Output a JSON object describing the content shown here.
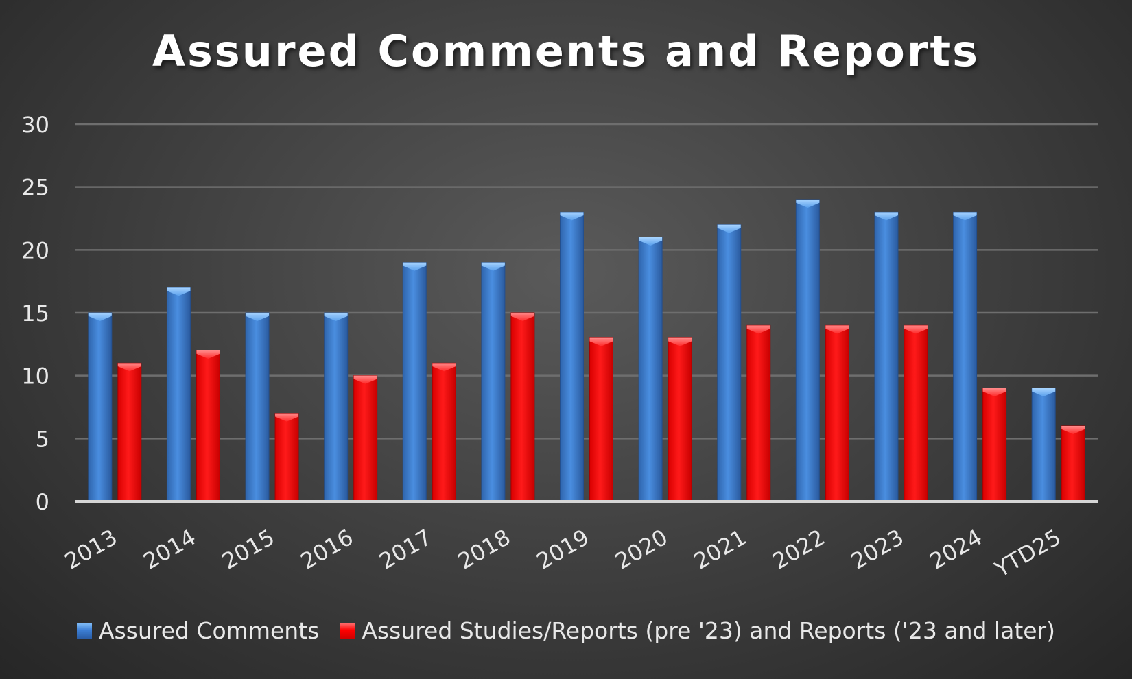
{
  "chart_data": {
    "type": "bar",
    "title": "Assured Comments and Reports",
    "xlabel": "",
    "ylabel": "",
    "ylim": [
      0,
      30
    ],
    "yticks": [
      "0",
      "5",
      "10",
      "15",
      "20",
      "25",
      "30"
    ],
    "grid": true,
    "legend_position": "bottom",
    "categories": [
      "2013",
      "2014",
      "2015",
      "2016",
      "2017",
      "2018",
      "2019",
      "2020",
      "2021",
      "2022",
      "2023",
      "2024",
      "YTD25"
    ],
    "series": [
      {
        "name": "Assured Comments",
        "color": "#3c7ed4",
        "values": [
          15,
          17,
          15,
          15,
          19,
          19,
          23,
          21,
          22,
          24,
          23,
          23,
          9
        ]
      },
      {
        "name": "Assured Studies/Reports (pre '23) and Reports ('23 and later)",
        "color": "#ff0000",
        "values": [
          11,
          12,
          7,
          10,
          11,
          15,
          13,
          13,
          14,
          14,
          14,
          9,
          6
        ]
      }
    ]
  }
}
